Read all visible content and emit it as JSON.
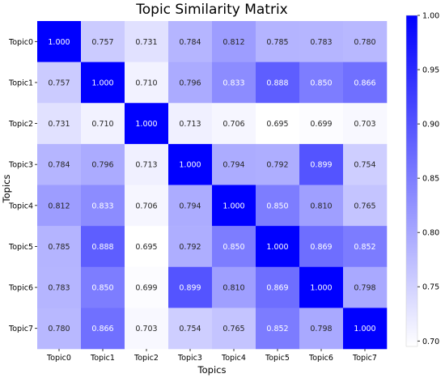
{
  "chart_data": {
    "type": "heatmap",
    "title": "Topic Similarity Matrix",
    "xlabel": "Topics",
    "ylabel": "Topics",
    "x_categories": [
      "Topic0",
      "Topic1",
      "Topic2",
      "Topic3",
      "Topic4",
      "Topic5",
      "Topic6",
      "Topic7"
    ],
    "y_categories": [
      "Topic0",
      "Topic1",
      "Topic2",
      "Topic3",
      "Topic4",
      "Topic5",
      "Topic6",
      "Topic7"
    ],
    "values": [
      [
        1.0,
        0.757,
        0.731,
        0.784,
        0.812,
        0.785,
        0.783,
        0.78
      ],
      [
        0.757,
        1.0,
        0.71,
        0.796,
        0.833,
        0.888,
        0.85,
        0.866
      ],
      [
        0.731,
        0.71,
        1.0,
        0.713,
        0.706,
        0.695,
        0.699,
        0.703
      ],
      [
        0.784,
        0.796,
        0.713,
        1.0,
        0.794,
        0.792,
        0.899,
        0.754
      ],
      [
        0.812,
        0.833,
        0.706,
        0.794,
        1.0,
        0.85,
        0.81,
        0.765
      ],
      [
        0.785,
        0.888,
        0.695,
        0.792,
        0.85,
        1.0,
        0.869,
        0.852
      ],
      [
        0.783,
        0.85,
        0.699,
        0.899,
        0.81,
        0.869,
        1.0,
        0.798
      ],
      [
        0.78,
        0.866,
        0.703,
        0.754,
        0.765,
        0.852,
        0.798,
        1.0
      ]
    ],
    "colorbar": {
      "range": [
        0.695,
        1.0
      ],
      "ticks": [
        "0.70",
        "0.75",
        "0.80",
        "0.85",
        "0.90",
        "0.95",
        "1.00"
      ],
      "colors": {
        "low": "#ffffff",
        "high": "#0000ff"
      }
    },
    "grid": false,
    "colorbar_position": "right"
  }
}
